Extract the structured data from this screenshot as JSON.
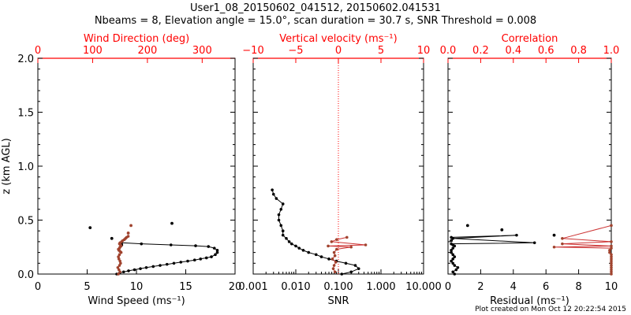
{
  "figure": {
    "title_line1": "User1_08_20150602_041512, 20150602.041531",
    "title_line2": "Nbeams = 8, Elevation angle = 15.0°, scan duration = 30.7 s, SNR Threshold = 0.008",
    "footer": "Plot created on Mon Oct 12 20:22:54 2015",
    "colors": {
      "axis": "#000000",
      "top_axis": "#ff0000",
      "black_series": "#000000",
      "red_series": "#a0432e",
      "red_line": "#cc3333"
    }
  },
  "chart_data": [
    {
      "type": "scatter",
      "panel": "wind",
      "ylabel": "z (km AGL)",
      "ylim": [
        0,
        2
      ],
      "yticks": [
        "0.0",
        "0.5",
        "1.0",
        "1.5",
        "2.0"
      ],
      "xlabel": "Wind Speed (ms⁻¹)",
      "xlim": [
        0,
        20
      ],
      "xticks": [
        "0",
        "5",
        "10",
        "15",
        "20"
      ],
      "top_label": "Wind Direction (deg)",
      "top_lim": [
        0,
        360
      ],
      "top_ticks": [
        "0",
        "100",
        "200",
        "300"
      ],
      "series": [
        {
          "axis": "bottom",
          "x": [
            8.0,
            8.3,
            8.7,
            9.2,
            9.8,
            10.4,
            11.0,
            11.7,
            12.4,
            13.1,
            13.8,
            14.5,
            15.2,
            15.9,
            16.5,
            17.1,
            17.6,
            18.0,
            18.2,
            18.2,
            17.9,
            17.3,
            16.0,
            13.5,
            10.5,
            8.5
          ],
          "y": [
            0.0,
            0.01,
            0.02,
            0.03,
            0.04,
            0.05,
            0.06,
            0.07,
            0.08,
            0.09,
            0.1,
            0.11,
            0.12,
            0.13,
            0.14,
            0.15,
            0.16,
            0.18,
            0.2,
            0.22,
            0.24,
            0.255,
            0.262,
            0.27,
            0.28,
            0.29
          ],
          "outliers": [
            [
              5.3,
              0.43
            ],
            [
              13.6,
              0.47
            ],
            [
              7.5,
              0.33
            ],
            [
              8.5,
              0.27
            ]
          ]
        },
        {
          "axis": "top",
          "x": [
            147,
            150,
            148,
            146,
            149,
            151,
            150,
            148,
            147,
            149,
            152,
            150,
            148,
            147,
            149,
            150,
            152,
            151,
            149,
            150,
            153,
            155,
            158,
            160,
            162,
            165
          ],
          "y": [
            0.0,
            0.02,
            0.04,
            0.06,
            0.08,
            0.1,
            0.12,
            0.14,
            0.16,
            0.18,
            0.2,
            0.21,
            0.22,
            0.23,
            0.24,
            0.25,
            0.26,
            0.27,
            0.28,
            0.29,
            0.3,
            0.31,
            0.32,
            0.33,
            0.34,
            0.35
          ],
          "outliers": [
            [
              165,
              0.38
            ],
            [
              170,
              0.45
            ]
          ]
        }
      ]
    },
    {
      "type": "scatter",
      "panel": "snr",
      "xlabel": "SNR",
      "xscale": "log",
      "xlim": [
        0.001,
        10
      ],
      "xticks": [
        "0.001",
        "0.010",
        "0.100",
        "1.000",
        "10.000"
      ],
      "top_label": "Vertical velocity (ms⁻¹)",
      "top_lim": [
        -10,
        10
      ],
      "top_ticks": [
        "−10",
        "−5",
        "0",
        "5",
        "10"
      ],
      "series": [
        {
          "axis": "bottom",
          "x": [
            0.12,
            0.2,
            0.3,
            0.25,
            0.15,
            0.09,
            0.06,
            0.04,
            0.03,
            0.02,
            0.015,
            0.012,
            0.01,
            0.008,
            0.007,
            0.006,
            0.005,
            0.005,
            0.0045,
            0.004,
            0.004,
            0.0045,
            0.005,
            0.0035,
            0.003,
            0.0028
          ],
          "y": [
            0.0,
            0.02,
            0.05,
            0.08,
            0.1,
            0.12,
            0.14,
            0.16,
            0.18,
            0.2,
            0.22,
            0.24,
            0.26,
            0.28,
            0.3,
            0.33,
            0.36,
            0.4,
            0.45,
            0.5,
            0.55,
            0.6,
            0.65,
            0.7,
            0.74,
            0.78
          ]
        },
        {
          "axis": "top",
          "x": [
            -0.4,
            -0.6,
            -0.5,
            -0.3,
            -0.7,
            -0.4,
            -0.5,
            -0.2,
            1.5,
            -1.2,
            3.2,
            -0.8,
            -0.2,
            1.0
          ],
          "y": [
            0.02,
            0.05,
            0.08,
            0.11,
            0.14,
            0.17,
            0.2,
            0.23,
            0.25,
            0.26,
            0.27,
            0.3,
            0.32,
            0.34
          ]
        }
      ]
    },
    {
      "type": "scatter",
      "panel": "residual",
      "xlabel": "Residual (ms⁻¹)",
      "xlim": [
        0,
        10
      ],
      "xticks": [
        "0",
        "2",
        "4",
        "6",
        "8",
        "10"
      ],
      "top_label": "Correlation",
      "top_lim": [
        0,
        1
      ],
      "top_ticks": [
        "0.0",
        "0.2",
        "0.4",
        "0.6",
        "0.8",
        "1.0"
      ],
      "series": [
        {
          "axis": "bottom",
          "x": [
            0.4,
            0.3,
            0.5,
            0.6,
            0.4,
            0.3,
            0.2,
            0.3,
            0.4,
            0.3,
            0.2,
            0.2,
            0.3,
            0.4,
            0.3,
            0.2,
            5.3,
            0.3,
            4.2,
            0.2
          ],
          "y": [
            0.0,
            0.02,
            0.04,
            0.06,
            0.08,
            0.1,
            0.12,
            0.14,
            0.16,
            0.18,
            0.2,
            0.22,
            0.24,
            0.26,
            0.27,
            0.28,
            0.29,
            0.33,
            0.36,
            0.34
          ],
          "outliers": [
            [
              1.2,
              0.45
            ],
            [
              3.3,
              0.41
            ],
            [
              6.5,
              0.36
            ],
            [
              0.2,
              0.31
            ]
          ]
        },
        {
          "axis": "top",
          "x": [
            1.0,
            1.0,
            1.0,
            1.0,
            1.0,
            1.0,
            1.0,
            1.0,
            1.0,
            1.0,
            0.99,
            0.99,
            1.0,
            0.65,
            1.0,
            0.7,
            1.0,
            0.7,
            1.0
          ],
          "y": [
            0.0,
            0.02,
            0.04,
            0.06,
            0.08,
            0.1,
            0.12,
            0.14,
            0.16,
            0.18,
            0.2,
            0.22,
            0.24,
            0.25,
            0.26,
            0.28,
            0.3,
            0.33,
            0.45
          ]
        }
      ]
    }
  ]
}
